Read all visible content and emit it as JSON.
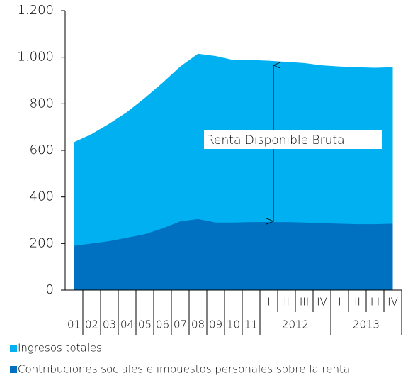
{
  "chart_data": {
    "type": "area",
    "categories": [
      "01",
      "02",
      "03",
      "04",
      "05",
      "06",
      "07",
      "08",
      "09",
      "10",
      "11",
      "I",
      "II",
      "III",
      "IV",
      "I",
      "II",
      "III",
      "IV"
    ],
    "x_groups": [
      "2012",
      "2013"
    ],
    "series": [
      {
        "name": "Ingresos totales",
        "color": "#00b0f0",
        "values": [
          635,
          670,
          715,
          765,
          825,
          890,
          960,
          1015,
          1005,
          988,
          988,
          985,
          980,
          975,
          965,
          960,
          957,
          955,
          957
        ]
      },
      {
        "name": "Contribuciones sociales e impuestos personales sobre la renta",
        "color": "#0070c0",
        "values": [
          190,
          200,
          210,
          225,
          240,
          265,
          295,
          305,
          290,
          290,
          292,
          292,
          292,
          290,
          287,
          285,
          283,
          283,
          285
        ]
      }
    ],
    "annotations": [
      "Renta Disponible Bruta"
    ],
    "ylim": [
      0,
      1200
    ],
    "yticks": [
      0,
      200,
      400,
      600,
      800,
      {
        "value": 1000,
        "label": "1.000"
      },
      {
        "value": 1200,
        "label": "1.200"
      }
    ],
    "grid": false
  }
}
